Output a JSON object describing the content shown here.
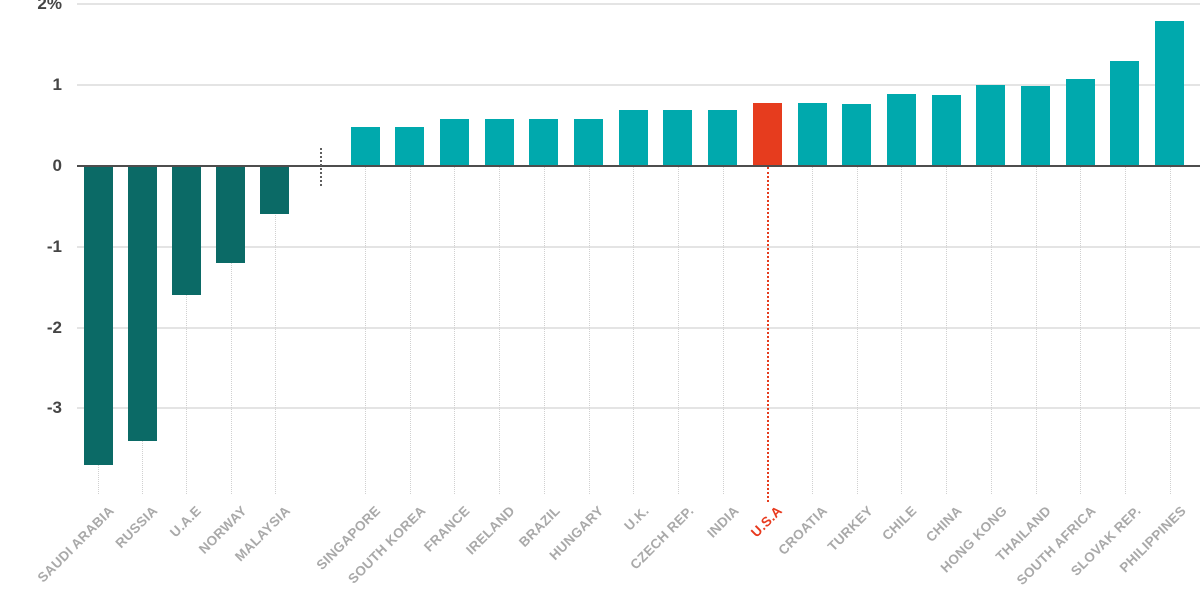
{
  "chart_data": {
    "type": "bar",
    "title": "",
    "xlabel": "",
    "ylabel": "",
    "categories": [
      "SAUDI ARABIA",
      "RUSSIA",
      "U.A.E",
      "NORWAY",
      "MALAYSIA",
      "SINGAPORE",
      "SOUTH KOREA",
      "FRANCE",
      "IRELAND",
      "BRAZIL",
      "HUNGARY",
      "U.K.",
      "CZECH REP.",
      "INDIA",
      "U.S.A",
      "CROATIA",
      "TURKEY",
      "CHILE",
      "CHINA",
      "HONG KONG",
      "THAILAND",
      "SOUTH AFRICA",
      "SLOVAK REP.",
      "PHILIPPINES"
    ],
    "values": [
      -3.7,
      -3.4,
      -1.6,
      -1.2,
      -0.6,
      0.48,
      0.48,
      0.58,
      0.58,
      0.58,
      0.58,
      0.69,
      0.69,
      0.69,
      0.78,
      0.78,
      0.77,
      0.89,
      0.88,
      1.0,
      0.99,
      1.08,
      1.3,
      1.79
    ],
    "highlight_category": "U.S.A",
    "y_ticks": [
      2,
      1,
      0,
      -1,
      -2,
      -3
    ],
    "y_tick_labels": [
      "2%",
      "1",
      "0",
      "-1",
      "-2",
      "-3"
    ],
    "ylim": [
      -3.95,
      2.05
    ],
    "grid": true,
    "legend_position": "none",
    "group_separator_after_index": 4,
    "colors": {
      "positive_bar": "#00a9ad",
      "negative_bar": "#0b6a66",
      "highlight_bar": "#e63c1e",
      "highlight_label": "#e8391d",
      "category_label": "#a9a9a9",
      "axis_tick_label": "#454545",
      "gridline": "#e4e4e4",
      "zero_axis": "#4d4d4d"
    }
  }
}
